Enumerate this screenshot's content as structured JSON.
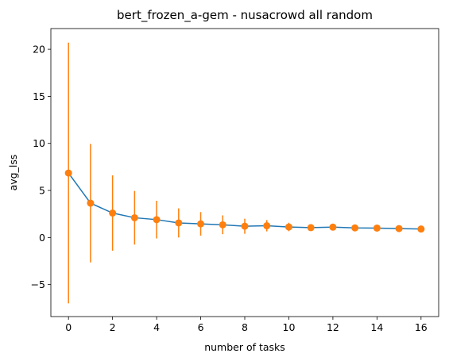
{
  "chart_data": {
    "type": "line",
    "title": "bert_frozen_a-gem - nusacrowd all random",
    "xlabel": "number of tasks",
    "ylabel": "avg_lss",
    "xlim": [
      -0.8,
      16.8
    ],
    "ylim": [
      -8.4,
      22.2
    ],
    "xticks": [
      0,
      2,
      4,
      6,
      8,
      10,
      12,
      14,
      16
    ],
    "yticks": [
      -5,
      0,
      5,
      10,
      15,
      20
    ],
    "grid": false,
    "colors": {
      "line": "#1f77b4",
      "points": "#ff7f0e",
      "errorbars": "#ff7f0e"
    },
    "series": [
      {
        "x": [
          0,
          1,
          2,
          3,
          4,
          5,
          6,
          7,
          8,
          9,
          10,
          11,
          12,
          13,
          14,
          15,
          16
        ],
        "values": [
          6.85,
          3.65,
          2.6,
          2.1,
          1.9,
          1.55,
          1.45,
          1.35,
          1.2,
          1.25,
          1.12,
          1.05,
          1.1,
          1.02,
          1.0,
          0.95,
          0.9
        ],
        "error": [
          13.85,
          6.3,
          4.0,
          2.85,
          2.0,
          1.55,
          1.25,
          1.0,
          0.8,
          0.6,
          0.45,
          0.25,
          0.2,
          0.15,
          0.12,
          0.1,
          0.08
        ]
      }
    ]
  }
}
